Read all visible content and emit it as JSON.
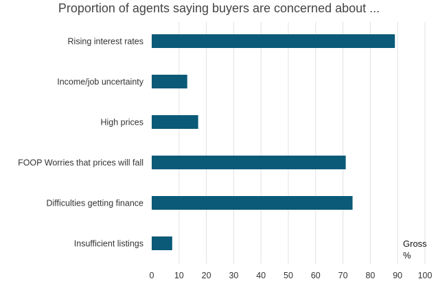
{
  "chart_data": {
    "type": "bar",
    "orientation": "horizontal",
    "title": "Proportion of agents saying buyers are concerned about ...",
    "categories": [
      "Rising interest rates",
      "Income/job uncertainty",
      "High prices",
      "FOOP Worries that prices will fall",
      "Difficulties getting finance",
      "Insufficient listings"
    ],
    "series": [
      {
        "name": "Gross %",
        "values": [
          89,
          13,
          17,
          71,
          73.5,
          7.5
        ]
      }
    ],
    "xlim": [
      0,
      100
    ],
    "xticks": [
      "0",
      "10",
      "20",
      "30",
      "40",
      "50",
      "60",
      "70",
      "80",
      "90",
      "100"
    ],
    "unit_label_line1": "Gross",
    "unit_label_line2": "%",
    "xlabel": "",
    "ylabel": "",
    "grid": "vertical",
    "bar_color": "#0a5a78",
    "grid_color": "#e0e0e0"
  }
}
